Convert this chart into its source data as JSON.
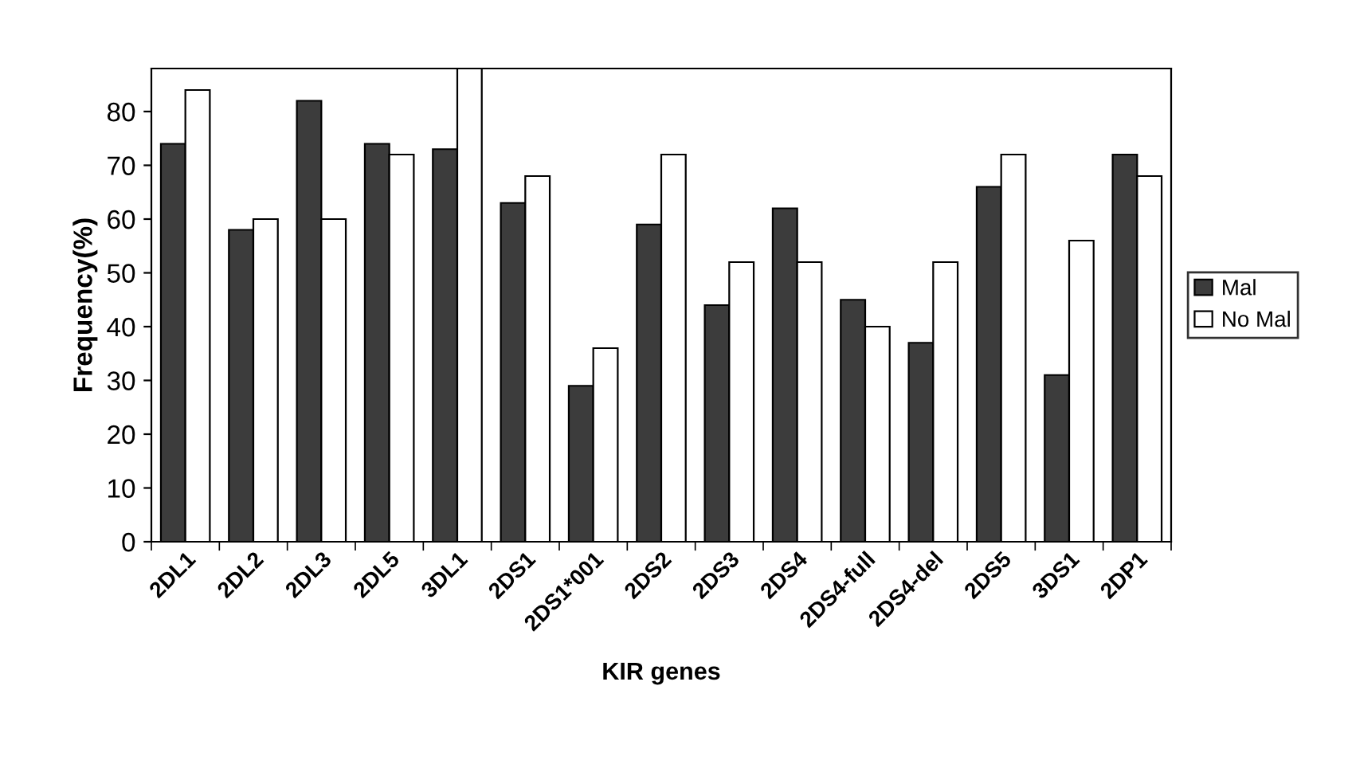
{
  "chart_data": {
    "type": "bar",
    "xlabel": "KIR genes",
    "ylabel": "Frequency(%)",
    "categories": [
      "2DL1",
      "2DL2",
      "2DL3",
      "2DL5",
      "3DL1",
      "2DS1",
      "2DS1*001",
      "2DS2",
      "2DS3",
      "2DS4",
      "2DS4-full",
      "2DS4-del",
      "2DS5",
      "3DS1",
      "2DP1"
    ],
    "series": [
      {
        "name": "Mal",
        "color": "#3c3c3c",
        "values": [
          74,
          58,
          82,
          74,
          73,
          63,
          29,
          59,
          44,
          62,
          45,
          37,
          66,
          31,
          72
        ]
      },
      {
        "name": "No Mal",
        "color": "#ffffff",
        "values": [
          84,
          60,
          60,
          72,
          88,
          68,
          36,
          72,
          52,
          52,
          40,
          52,
          72,
          56,
          68
        ]
      }
    ],
    "ylim": [
      0,
      88
    ],
    "yticks": [
      0,
      10,
      20,
      30,
      40,
      50,
      60,
      70,
      80
    ],
    "grid": false,
    "legend": "right"
  }
}
